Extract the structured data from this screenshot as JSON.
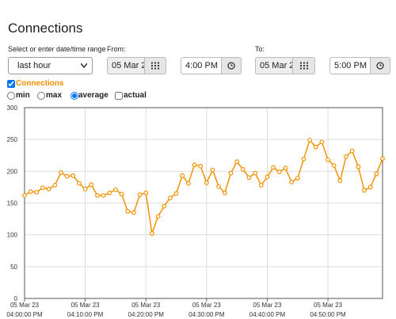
{
  "header": {
    "title": "Connections"
  },
  "range": {
    "label": "Select or enter date/time range",
    "selected": "last hour"
  },
  "from": {
    "label": "From:",
    "date": "05 Mar 2",
    "time": "4:00 PM"
  },
  "to": {
    "label": "To:",
    "date": "05 Mar 2",
    "time": "5:00 PM"
  },
  "options": [
    {
      "label": "min",
      "checked": false
    },
    {
      "label": "max",
      "checked": false
    },
    {
      "label": "average",
      "checked": true
    }
  ],
  "actual": {
    "label": "actual",
    "checked": false
  },
  "chart_data": {
    "type": "line",
    "x": [
      "16:00",
      "16:01",
      "16:02",
      "16:03",
      "16:04",
      "16:05",
      "16:06",
      "16:07",
      "16:08",
      "16:09",
      "16:10",
      "16:11",
      "16:12",
      "16:13",
      "16:14",
      "16:15",
      "16:16",
      "16:17",
      "16:18",
      "16:19",
      "16:20",
      "16:21",
      "16:22",
      "16:23",
      "16:24",
      "16:25",
      "16:26",
      "16:27",
      "16:28",
      "16:29",
      "16:30",
      "16:31",
      "16:32",
      "16:33",
      "16:34",
      "16:35",
      "16:36",
      "16:37",
      "16:38",
      "16:39",
      "16:40",
      "16:41",
      "16:42",
      "16:43",
      "16:44",
      "16:45",
      "16:46",
      "16:47",
      "16:48",
      "16:49",
      "16:50",
      "16:51",
      "16:52",
      "16:53",
      "16:54",
      "16:55",
      "16:56",
      "16:57",
      "16:58",
      "16:59"
    ],
    "series": [
      {
        "name": "Connections",
        "color": "#f39200",
        "visible": true,
        "values": [
          162,
          168,
          167,
          174,
          172,
          178,
          198,
          192,
          193,
          181,
          172,
          179,
          162,
          162,
          166,
          171,
          164,
          137,
          135,
          163,
          166,
          102,
          129,
          145,
          158,
          165,
          193,
          181,
          210,
          208,
          182,
          202,
          176,
          166,
          197,
          215,
          203,
          190,
          197,
          178,
          191,
          206,
          199,
          205,
          183,
          189,
          219,
          249,
          238,
          246,
          218,
          209,
          185,
          223,
          232,
          207,
          170,
          175,
          196,
          220
        ]
      }
    ],
    "xlim": [
      "16:00",
      "16:59"
    ],
    "xticks": [
      {
        "value": "16:00",
        "label": [
          "05 Mar 23",
          "04:00:00 PM"
        ]
      },
      {
        "value": "16:10",
        "label": [
          "05 Mar 23",
          "04:10:00 PM"
        ]
      },
      {
        "value": "16:20",
        "label": [
          "05 Mar 23",
          "04:20:00 PM"
        ]
      },
      {
        "value": "16:30",
        "label": [
          "05 Mar 23",
          "04:30:00 PM"
        ]
      },
      {
        "value": "16:40",
        "label": [
          "05 Mar 23",
          "04:40:00 PM"
        ]
      },
      {
        "value": "16:50",
        "label": [
          "05 Mar 23",
          "04:50:00 PM"
        ]
      }
    ],
    "ylim": [
      0,
      300
    ],
    "yticks": [
      0,
      50,
      100,
      150,
      200,
      250,
      300
    ],
    "grid": true
  }
}
